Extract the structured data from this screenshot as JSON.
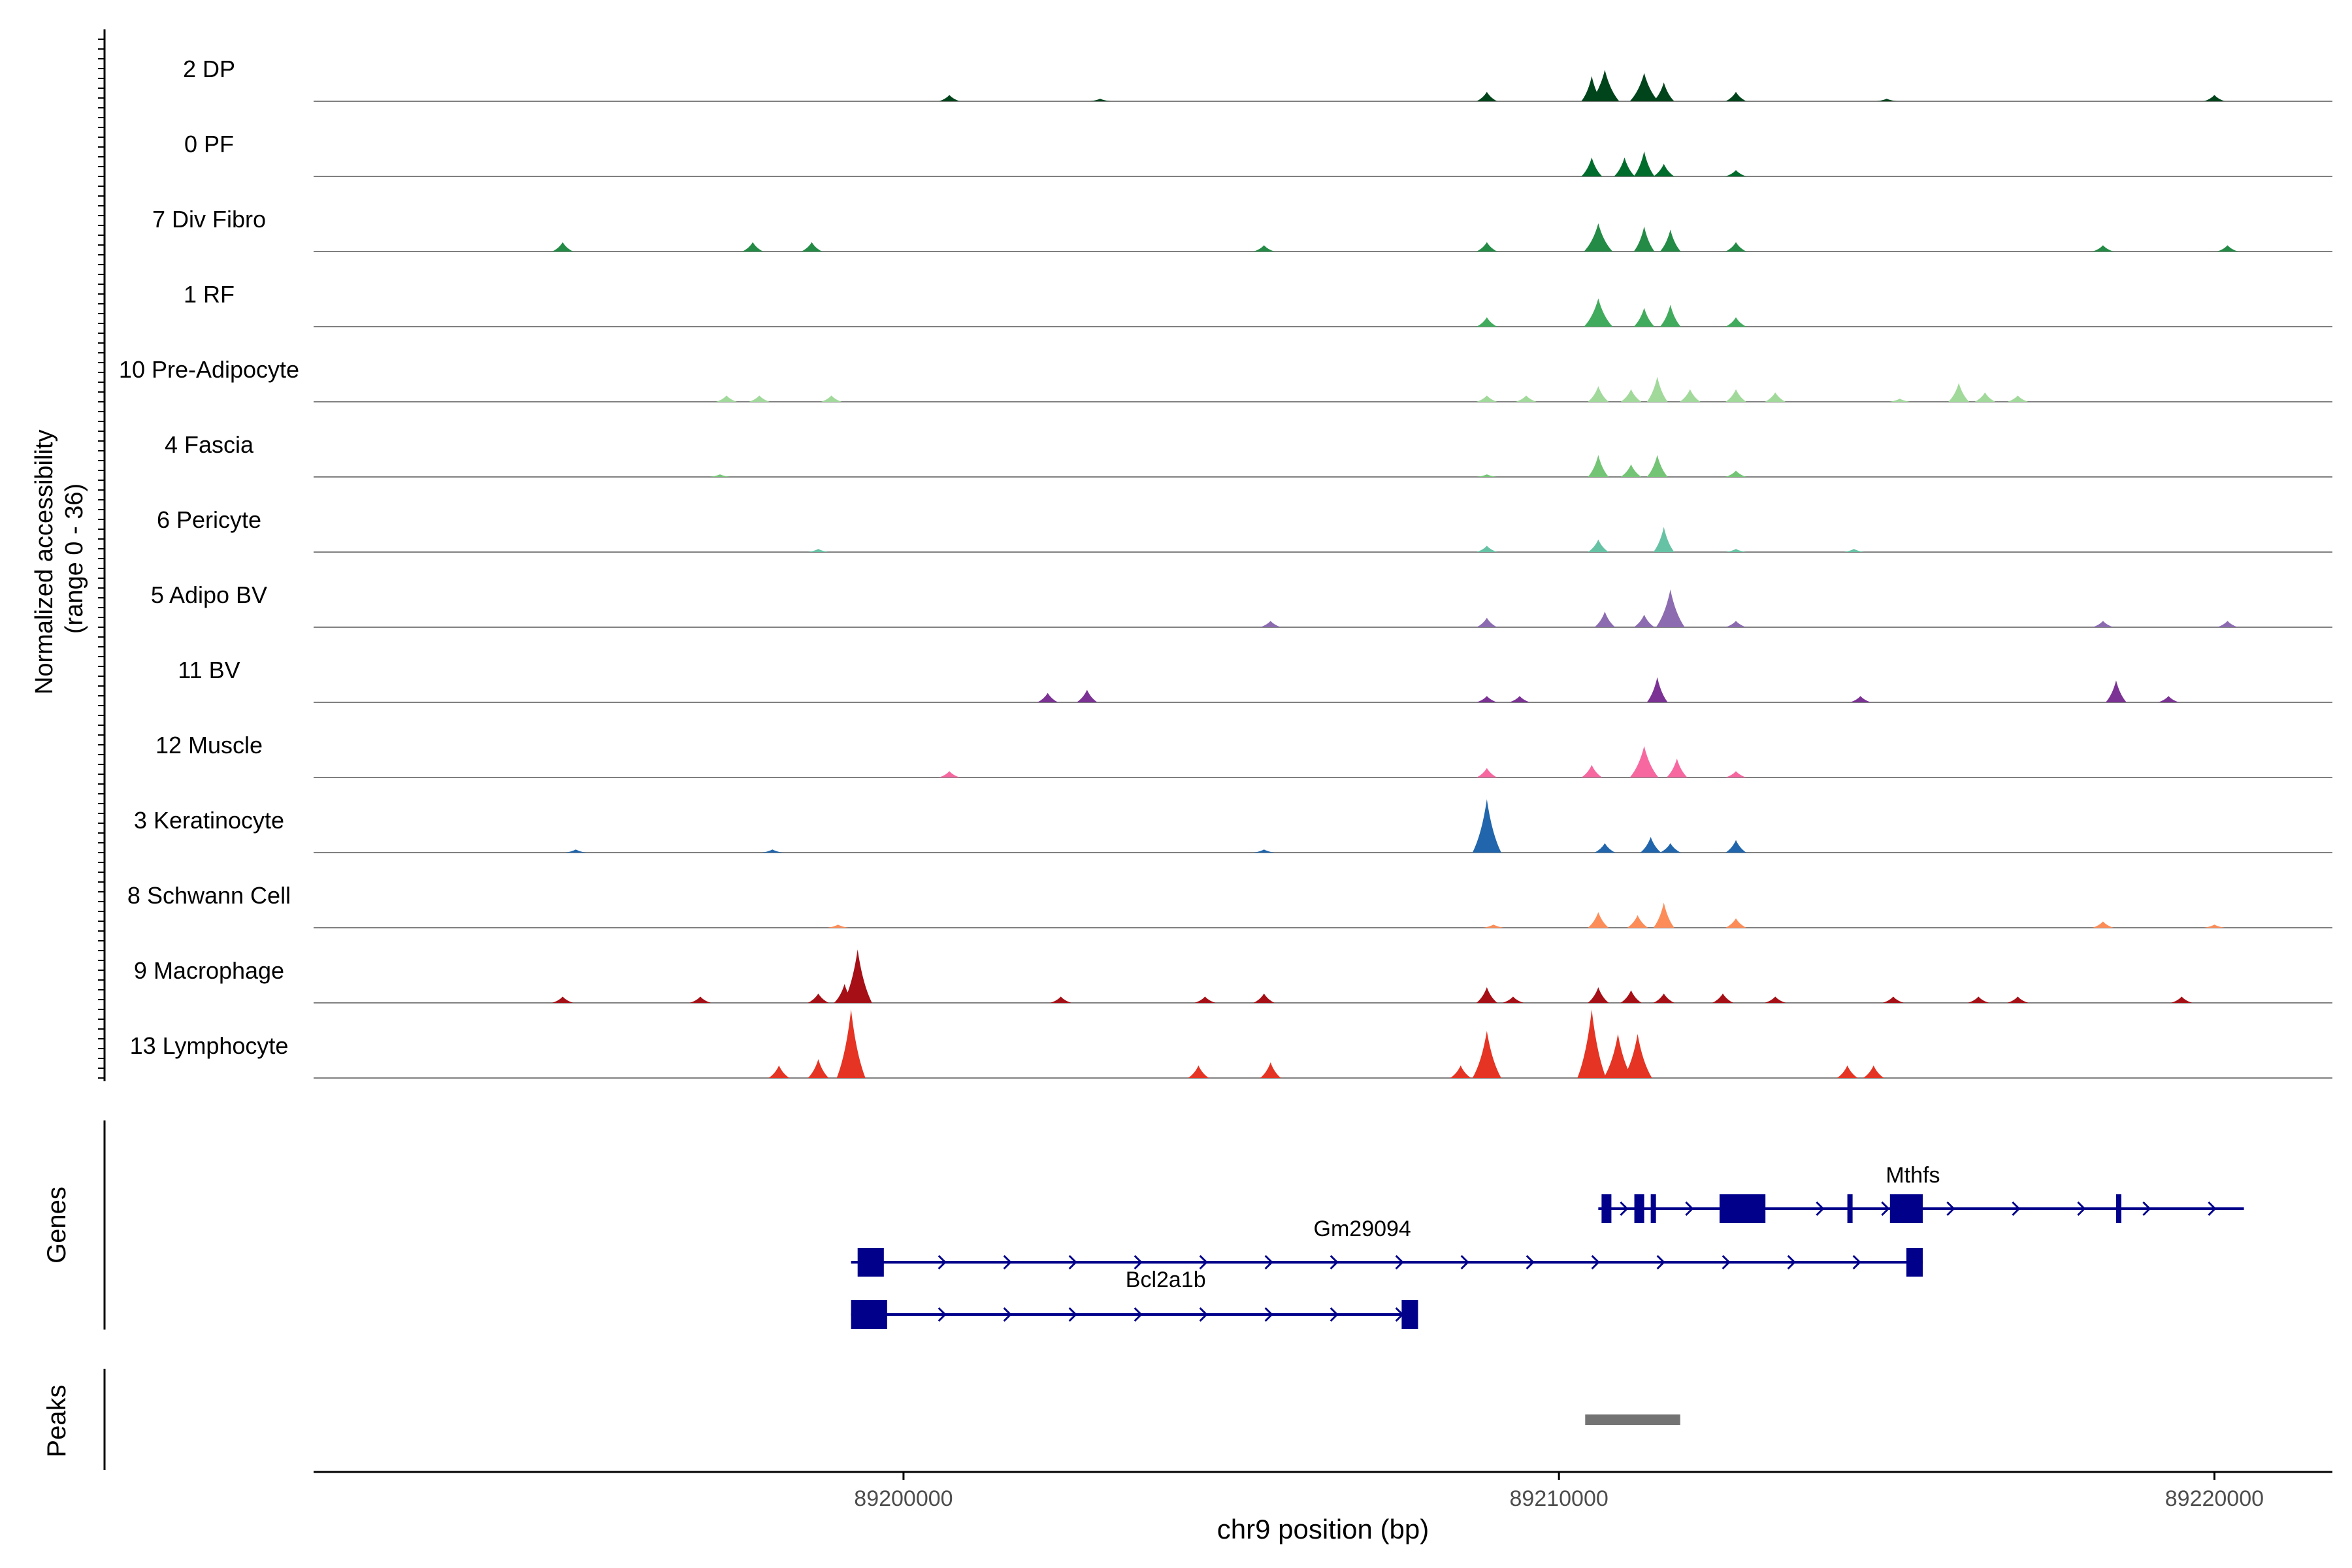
{
  "chart_data": {
    "type": "area",
    "title": "",
    "xlabel": "chr9 position (bp)",
    "ylabel": "Normalized accessibility\n(range 0 - 36)",
    "xlim": [
      89191000,
      89221800
    ],
    "ylim": [
      0,
      36
    ],
    "x_ticks": [
      89200000,
      89210000,
      89220000
    ],
    "x_tick_labels": [
      "89200000",
      "89210000",
      "89220000"
    ],
    "panel_labels": {
      "genes": "Genes",
      "peaks": "Peaks"
    },
    "tracks": [
      {
        "name": "2 DP",
        "color": "#00441b",
        "peaks": [
          [
            89200700,
            1
          ],
          [
            89203000,
            0.4
          ],
          [
            89208900,
            1.5
          ],
          [
            89210500,
            4
          ],
          [
            89210700,
            5
          ],
          [
            89211300,
            4.5
          ],
          [
            89211600,
            3
          ],
          [
            89212700,
            1.5
          ],
          [
            89215000,
            0.4
          ],
          [
            89220000,
            1
          ]
        ]
      },
      {
        "name": "0 PF",
        "color": "#006d2c",
        "peaks": [
          [
            89210500,
            3
          ],
          [
            89211000,
            3
          ],
          [
            89211300,
            4
          ],
          [
            89211600,
            2
          ],
          [
            89212700,
            1
          ]
        ]
      },
      {
        "name": "7 Div Fibro",
        "color": "#238b45",
        "peaks": [
          [
            89194800,
            1.5
          ],
          [
            89197700,
            1.5
          ],
          [
            89198600,
            1.5
          ],
          [
            89205500,
            1
          ],
          [
            89208900,
            1.5
          ],
          [
            89210600,
            4.5
          ],
          [
            89211300,
            4
          ],
          [
            89211700,
            3.5
          ],
          [
            89212700,
            1.5
          ],
          [
            89218300,
            1
          ],
          [
            89220200,
            1
          ]
        ]
      },
      {
        "name": "1 RF",
        "color": "#41ab5d",
        "peaks": [
          [
            89208900,
            1.5
          ],
          [
            89210600,
            4.5
          ],
          [
            89211300,
            3
          ],
          [
            89211700,
            3.5
          ],
          [
            89212700,
            1.5
          ]
        ]
      },
      {
        "name": "10 Pre-Adipocyte",
        "color": "#a1d99b",
        "peaks": [
          [
            89197300,
            1
          ],
          [
            89197800,
            1
          ],
          [
            89198900,
            1
          ],
          [
            89208900,
            1
          ],
          [
            89209500,
            1
          ],
          [
            89210600,
            2.5
          ],
          [
            89211100,
            2
          ],
          [
            89211500,
            4
          ],
          [
            89212000,
            2
          ],
          [
            89212700,
            2
          ],
          [
            89213300,
            1.5
          ],
          [
            89215200,
            0.5
          ],
          [
            89216100,
            3
          ],
          [
            89216500,
            1.5
          ],
          [
            89217000,
            1
          ]
        ]
      },
      {
        "name": "4 Fascia",
        "color": "#74c476",
        "peaks": [
          [
            89197200,
            0.4
          ],
          [
            89208900,
            0.4
          ],
          [
            89210600,
            3.5
          ],
          [
            89211100,
            2
          ],
          [
            89211500,
            3.5
          ],
          [
            89212700,
            1
          ]
        ]
      },
      {
        "name": "6 Pericyte",
        "color": "#66c2a4",
        "peaks": [
          [
            89198700,
            0.5
          ],
          [
            89208900,
            1
          ],
          [
            89210600,
            2
          ],
          [
            89211600,
            4
          ],
          [
            89212700,
            0.5
          ],
          [
            89214500,
            0.5
          ]
        ]
      },
      {
        "name": "5 Adipo BV",
        "color": "#8c6bb1",
        "peaks": [
          [
            89205600,
            1
          ],
          [
            89208900,
            1.5
          ],
          [
            89210700,
            2.5
          ],
          [
            89211300,
            2
          ],
          [
            89211700,
            6
          ],
          [
            89212700,
            1
          ],
          [
            89218300,
            1
          ],
          [
            89220200,
            1
          ]
        ]
      },
      {
        "name": "11 BV",
        "color": "#7b3294",
        "peaks": [
          [
            89202200,
            1.5
          ],
          [
            89202800,
            2
          ],
          [
            89208900,
            1
          ],
          [
            89209400,
            1
          ],
          [
            89211500,
            4
          ],
          [
            89214600,
            1
          ],
          [
            89218500,
            3.5
          ],
          [
            89219300,
            1
          ]
        ]
      },
      {
        "name": "12 Muscle",
        "color": "#f768a1",
        "peaks": [
          [
            89200700,
            1
          ],
          [
            89208900,
            1.5
          ],
          [
            89210500,
            2
          ],
          [
            89211300,
            5
          ],
          [
            89211800,
            3
          ],
          [
            89212700,
            1
          ]
        ]
      },
      {
        "name": "3 Keratinocyte",
        "color": "#2166ac",
        "peaks": [
          [
            89195000,
            0.5
          ],
          [
            89198000,
            0.5
          ],
          [
            89205500,
            0.5
          ],
          [
            89208900,
            8.5
          ],
          [
            89210700,
            1.5
          ],
          [
            89211400,
            2.5
          ],
          [
            89211700,
            1.5
          ],
          [
            89212700,
            2
          ]
        ]
      },
      {
        "name": "8 Schwann Cell",
        "color": "#fc8d59",
        "peaks": [
          [
            89199000,
            0.5
          ],
          [
            89209000,
            0.5
          ],
          [
            89210600,
            2.5
          ],
          [
            89211200,
            2
          ],
          [
            89211600,
            4
          ],
          [
            89212700,
            1.5
          ],
          [
            89218300,
            1
          ],
          [
            89220000,
            0.5
          ]
        ]
      },
      {
        "name": "9 Macrophage",
        "color": "#a50f15",
        "peaks": [
          [
            89194800,
            1
          ],
          [
            89196900,
            1
          ],
          [
            89198700,
            1.5
          ],
          [
            89199100,
            3
          ],
          [
            89199300,
            8.5
          ],
          [
            89202400,
            1
          ],
          [
            89204600,
            1
          ],
          [
            89205500,
            1.5
          ],
          [
            89208900,
            2.5
          ],
          [
            89209300,
            1
          ],
          [
            89210600,
            2.5
          ],
          [
            89211100,
            2
          ],
          [
            89211600,
            1.5
          ],
          [
            89212500,
            1.5
          ],
          [
            89213300,
            1
          ],
          [
            89215100,
            1
          ],
          [
            89216400,
            1
          ],
          [
            89217000,
            1
          ],
          [
            89219500,
            1
          ]
        ]
      },
      {
        "name": "13 Lymphocyte",
        "color": "#e53423",
        "peaks": [
          [
            89198100,
            2
          ],
          [
            89198700,
            3
          ],
          [
            89199200,
            11
          ],
          [
            89204500,
            2
          ],
          [
            89205600,
            2.5
          ],
          [
            89208500,
            2
          ],
          [
            89208900,
            7.5
          ],
          [
            89210500,
            11
          ],
          [
            89210900,
            7
          ],
          [
            89211200,
            7
          ],
          [
            89214400,
            2
          ],
          [
            89214800,
            2
          ]
        ]
      }
    ],
    "genes": [
      {
        "name": "Mthfs",
        "start": 89210600,
        "end": 89220450,
        "row": 0,
        "strand": "+",
        "exons": [
          [
            89210650,
            89210800
          ],
          [
            89211150,
            89211300
          ],
          [
            89211400,
            89211480
          ],
          [
            89212450,
            89213150
          ],
          [
            89214400,
            89214450
          ],
          [
            89215050,
            89215550
          ],
          [
            89218500,
            89218550
          ]
        ]
      },
      {
        "name": "Gm29094",
        "start": 89199200,
        "end": 89215550,
        "row": 1,
        "strand": "+",
        "exons": [
          [
            89199300,
            89199700
          ],
          [
            89215300,
            89215550
          ]
        ]
      },
      {
        "name": "Bcl2a1b",
        "start": 89199200,
        "end": 89207800,
        "row": 2,
        "strand": "+",
        "exons": [
          [
            89199200,
            89199750
          ],
          [
            89207600,
            89207850
          ]
        ]
      }
    ],
    "peaks_track": [
      [
        89210400,
        89211850
      ]
    ]
  }
}
